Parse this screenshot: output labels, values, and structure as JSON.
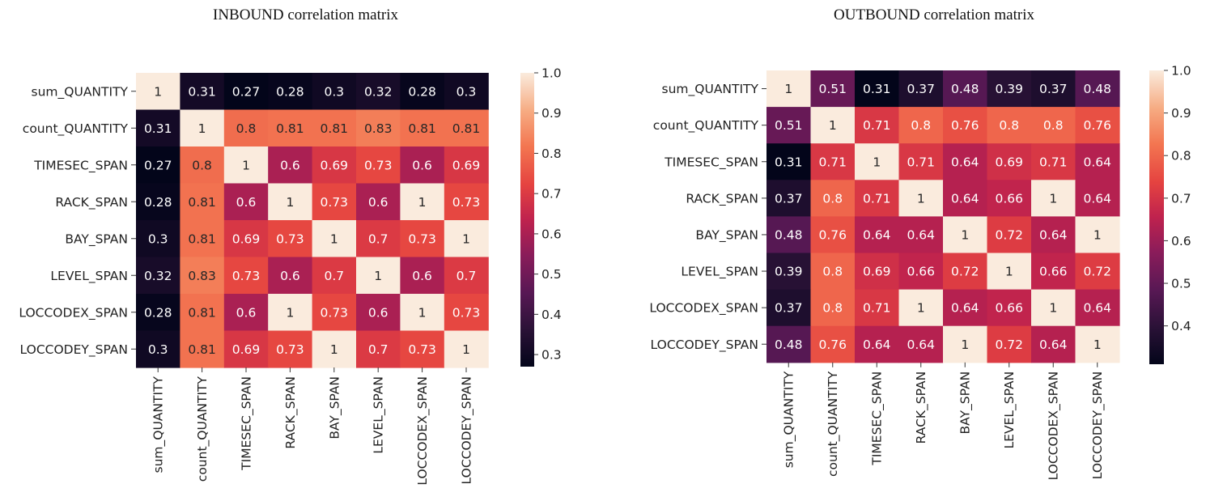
{
  "titles": {
    "inbound": "INBOUND correlation matrix",
    "outbound": "OUTBOUND correlation matrix"
  },
  "chart_data": [
    {
      "type": "heatmap",
      "title": "INBOUND correlation matrix",
      "colormap": "rocket",
      "rows": [
        "sum_QUANTITY",
        "count_QUANTITY",
        "TIMESEC_SPAN",
        "RACK_SPAN",
        "BAY_SPAN",
        "LEVEL_SPAN",
        "LOCCODEX_SPAN",
        "LOCCODEY_SPAN"
      ],
      "columns": [
        "sum_QUANTITY",
        "count_QUANTITY",
        "TIMESEC_SPAN",
        "RACK_SPAN",
        "BAY_SPAN",
        "LEVEL_SPAN",
        "LOCCODEX_SPAN",
        "LOCCODEY_SPAN"
      ],
      "values": [
        [
          1,
          0.31,
          0.27,
          0.28,
          0.3,
          0.32,
          0.28,
          0.3
        ],
        [
          0.31,
          1,
          0.8,
          0.81,
          0.81,
          0.83,
          0.81,
          0.81
        ],
        [
          0.27,
          0.8,
          1,
          0.6,
          0.69,
          0.73,
          0.6,
          0.69
        ],
        [
          0.28,
          0.81,
          0.6,
          1,
          0.73,
          0.6,
          1,
          0.73
        ],
        [
          0.3,
          0.81,
          0.69,
          0.73,
          1,
          0.7,
          0.73,
          1
        ],
        [
          0.32,
          0.83,
          0.73,
          0.6,
          0.7,
          1,
          0.6,
          0.7
        ],
        [
          0.28,
          0.81,
          0.6,
          1,
          0.73,
          0.6,
          1,
          0.73
        ],
        [
          0.3,
          0.81,
          0.69,
          0.73,
          1,
          0.7,
          0.73,
          1
        ]
      ],
      "color_range": [
        0.27,
        1.0
      ],
      "colorbar_ticks": [
        0.3,
        0.4,
        0.5,
        0.6,
        0.7,
        0.8,
        0.9,
        1.0
      ],
      "colorbar_tick_labels": [
        "0.3",
        "0.4",
        "0.5",
        "0.6",
        "0.7",
        "0.8",
        "0.9",
        "1.0"
      ]
    },
    {
      "type": "heatmap",
      "title": "OUTBOUND correlation matrix",
      "colormap": "rocket",
      "rows": [
        "sum_QUANTITY",
        "count_QUANTITY",
        "TIMESEC_SPAN",
        "RACK_SPAN",
        "BAY_SPAN",
        "LEVEL_SPAN",
        "LOCCODEX_SPAN",
        "LOCCODEY_SPAN"
      ],
      "columns": [
        "sum_QUANTITY",
        "count_QUANTITY",
        "TIMESEC_SPAN",
        "RACK_SPAN",
        "BAY_SPAN",
        "LEVEL_SPAN",
        "LOCCODEX_SPAN",
        "LOCCODEY_SPAN"
      ],
      "values": [
        [
          1,
          0.51,
          0.31,
          0.37,
          0.48,
          0.39,
          0.37,
          0.48
        ],
        [
          0.51,
          1,
          0.71,
          0.8,
          0.76,
          0.8,
          0.8,
          0.76
        ],
        [
          0.31,
          0.71,
          1,
          0.71,
          0.64,
          0.69,
          0.71,
          0.64
        ],
        [
          0.37,
          0.8,
          0.71,
          1,
          0.64,
          0.66,
          1,
          0.64
        ],
        [
          0.48,
          0.76,
          0.64,
          0.64,
          1,
          0.72,
          0.64,
          1
        ],
        [
          0.39,
          0.8,
          0.69,
          0.66,
          0.72,
          1,
          0.66,
          0.72
        ],
        [
          0.37,
          0.8,
          0.71,
          1,
          0.64,
          0.66,
          1,
          0.64
        ],
        [
          0.48,
          0.76,
          0.64,
          0.64,
          1,
          0.72,
          0.64,
          1
        ]
      ],
      "color_range": [
        0.31,
        1.0
      ],
      "colorbar_ticks": [
        0.4,
        0.5,
        0.6,
        0.7,
        0.8,
        0.9,
        1.0
      ],
      "colorbar_tick_labels": [
        "0.4",
        "0.5",
        "0.6",
        "0.7",
        "0.8",
        "0.9",
        "1.0"
      ]
    }
  ]
}
